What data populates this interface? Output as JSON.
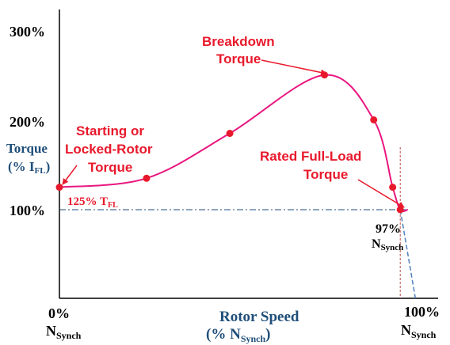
{
  "chart_data": {
    "type": "line",
    "xlabel": "Rotor Speed",
    "xlabel_sub": "(% N",
    "xlabel_sub_sub": "Synch",
    "xlabel_sub_close": ")",
    "ylabel_line1": "Torque",
    "ylabel_line2_open": "(% I",
    "ylabel_line2_sub": "FL",
    "ylabel_line2_close": ")",
    "ytick_labels": [
      "100%",
      "200%",
      "300%"
    ],
    "ytick_values": [
      100,
      200,
      300
    ],
    "xtick_labels": [
      {
        "top": "0%",
        "main": "N",
        "sub": "Synch"
      },
      {
        "top": "100%",
        "main": "N",
        "sub": "Synch"
      }
    ],
    "xtick_values": [
      0,
      100
    ],
    "xlim": [
      0,
      100
    ],
    "ylim": [
      0,
      340
    ],
    "series": [
      {
        "color": "#e8177f",
        "x": [
          0,
          23,
          45,
          70,
          83,
          88,
          90,
          92
        ],
        "y": [
          125,
          135,
          185,
          250,
          200,
          125,
          100,
          100
        ]
      }
    ],
    "markers": [
      {
        "x": 0,
        "y": 125
      },
      {
        "x": 23,
        "y": 135
      },
      {
        "x": 45,
        "y": 185
      },
      {
        "x": 70,
        "y": 250
      },
      {
        "x": 83,
        "y": 200
      },
      {
        "x": 88,
        "y": 125
      },
      {
        "x": 90,
        "y": 100
      }
    ],
    "load_line": {
      "x": [
        0,
        92
      ],
      "y": [
        100,
        100
      ],
      "color": "#1f4e79"
    },
    "torque_line": {
      "x": [
        90,
        94
      ],
      "y": [
        100,
        -5
      ],
      "color": "#4f81bd"
    },
    "vertical_line": {
      "x": 90,
      "y": [
        0,
        300
      ],
      "color": "#c0504d"
    },
    "annotations": {
      "breakdown_line1": "Breakdown",
      "breakdown_line2": "Torque",
      "starting_line1": "Starting or",
      "starting_line2": "Locked-Rotor",
      "starting_line3": "Torque",
      "rated_line1": "Rated Full-Load",
      "rated_line2": "Torque",
      "tfl_value": "125% T",
      "tfl_sub": "FL",
      "pct97": "97%",
      "n_main": "N",
      "n_sub": "Synch"
    },
    "colors": {
      "curve": "#e8177f",
      "marker": "#e8192c",
      "annotation": "#e8192c",
      "axis_label": "#1f4e79",
      "axis": "#000000"
    }
  }
}
